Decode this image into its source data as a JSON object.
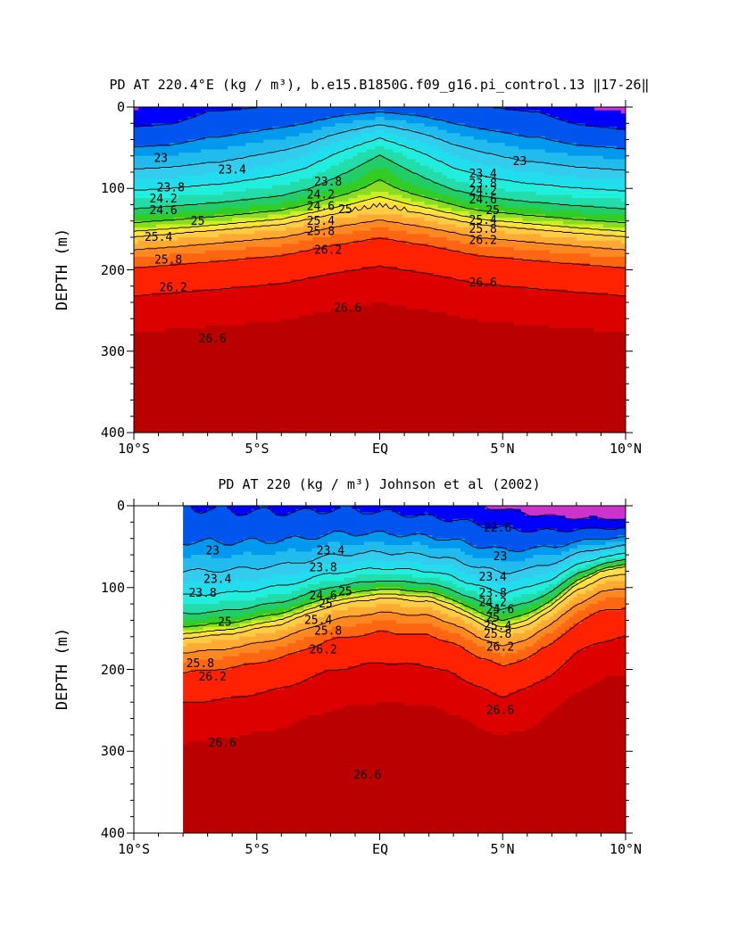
{
  "chart_data": [
    {
      "type": "heatmap",
      "title": "PD AT 220.4°E (kg / m³), b.e15.B1850G.f09_g16.pi_control.13 ‖17-26‖",
      "xlabel": "",
      "ylabel": "DEPTH (m)",
      "xlim": [
        -10,
        10
      ],
      "ylim": [
        400,
        0
      ],
      "x_ticks": [
        -10,
        -5,
        0,
        5,
        10
      ],
      "x_tick_labels": [
        "10°S",
        "5°S",
        "EQ",
        "5°N",
        "10°N"
      ],
      "y_ticks": [
        0,
        100,
        200,
        300,
        400
      ],
      "y_tick_labels": [
        "0",
        "100",
        "200",
        "300",
        "400"
      ],
      "data_start_x": -10,
      "contour_levels": [
        22.6,
        23.0,
        23.4,
        23.8,
        24.2,
        24.6,
        25.0,
        25.4,
        25.8,
        26.2,
        26.6
      ],
      "contour_labels": [
        {
          "text": "23",
          "x": -8.9,
          "y": 63
        },
        {
          "text": "23.4",
          "x": -6.0,
          "y": 77
        },
        {
          "text": "23.8",
          "x": -8.5,
          "y": 99
        },
        {
          "text": "24.2",
          "x": -8.8,
          "y": 113
        },
        {
          "text": "24.6",
          "x": -8.8,
          "y": 127
        },
        {
          "text": "25",
          "x": -7.4,
          "y": 140
        },
        {
          "text": "25.4",
          "x": -9.0,
          "y": 160
        },
        {
          "text": "25.8",
          "x": -8.6,
          "y": 188
        },
        {
          "text": "26.2",
          "x": -8.4,
          "y": 222
        },
        {
          "text": "26.6",
          "x": -6.8,
          "y": 285
        },
        {
          "text": "23.8",
          "x": -2.1,
          "y": 92
        },
        {
          "text": "24.2",
          "x": -2.4,
          "y": 108
        },
        {
          "text": "24.6",
          "x": -2.4,
          "y": 122
        },
        {
          "text": "25",
          "x": -1.4,
          "y": 126
        },
        {
          "text": "25.4",
          "x": -2.4,
          "y": 140
        },
        {
          "text": "25.8",
          "x": -2.4,
          "y": 153
        },
        {
          "text": "26.2",
          "x": -2.1,
          "y": 176
        },
        {
          "text": "26.6",
          "x": -1.3,
          "y": 247
        },
        {
          "text": "23",
          "x": 5.7,
          "y": 67
        },
        {
          "text": "23.4",
          "x": 4.2,
          "y": 82
        },
        {
          "text": "24.2",
          "x": 4.2,
          "y": 103
        },
        {
          "text": "23.8",
          "x": 4.2,
          "y": 94
        },
        {
          "text": "24.6",
          "x": 4.2,
          "y": 114
        },
        {
          "text": "25",
          "x": 4.6,
          "y": 127
        },
        {
          "text": "25.4",
          "x": 4.2,
          "y": 139
        },
        {
          "text": "25.8",
          "x": 4.2,
          "y": 150
        },
        {
          "text": "26.2",
          "x": 4.2,
          "y": 164
        },
        {
          "text": "26.6",
          "x": 4.2,
          "y": 216
        }
      ]
    },
    {
      "type": "heatmap",
      "title": "PD AT 220 (kg / m³) Johnson et al (2002)",
      "xlabel": "",
      "ylabel": "DEPTH (m)",
      "xlim": [
        -10,
        10
      ],
      "ylim": [
        400,
        0
      ],
      "x_ticks": [
        -10,
        -5,
        0,
        5,
        10
      ],
      "x_tick_labels": [
        "10°S",
        "5°S",
        "EQ",
        "5°N",
        "10°N"
      ],
      "y_ticks": [
        0,
        100,
        200,
        300,
        400
      ],
      "y_tick_labels": [
        "0",
        "100",
        "200",
        "300",
        "400"
      ],
      "data_start_x": -8,
      "contour_levels": [
        22.2,
        22.6,
        23.0,
        23.4,
        23.8,
        24.2,
        24.6,
        25.0,
        25.4,
        25.8,
        26.2,
        26.6
      ],
      "contour_labels": [
        {
          "text": "23",
          "x": -6.8,
          "y": 55
        },
        {
          "text": "23.4",
          "x": -6.6,
          "y": 90
        },
        {
          "text": "23.8",
          "x": -7.2,
          "y": 107
        },
        {
          "text": "25",
          "x": -6.3,
          "y": 142
        },
        {
          "text": "25.8",
          "x": -7.3,
          "y": 193
        },
        {
          "text": "26.2",
          "x": -6.8,
          "y": 209
        },
        {
          "text": "26.6",
          "x": -6.4,
          "y": 290
        },
        {
          "text": "23.4",
          "x": -2.0,
          "y": 55
        },
        {
          "text": "23.8",
          "x": -2.3,
          "y": 76
        },
        {
          "text": "24.6",
          "x": -2.3,
          "y": 110
        },
        {
          "text": "25",
          "x": -2.2,
          "y": 120
        },
        {
          "text": "25",
          "x": -1.4,
          "y": 105
        },
        {
          "text": "25.4",
          "x": -2.5,
          "y": 140
        },
        {
          "text": "25.8",
          "x": -2.1,
          "y": 153
        },
        {
          "text": "26.2",
          "x": -2.3,
          "y": 176
        },
        {
          "text": "26.6",
          "x": -0.5,
          "y": 329
        },
        {
          "text": "22.6",
          "x": 4.8,
          "y": 27
        },
        {
          "text": "23",
          "x": 4.9,
          "y": 62
        },
        {
          "text": "23.4",
          "x": 4.6,
          "y": 87
        },
        {
          "text": "23.8",
          "x": 4.6,
          "y": 107
        },
        {
          "text": "24.2",
          "x": 4.6,
          "y": 118
        },
        {
          "text": "24.6",
          "x": 4.9,
          "y": 127
        },
        {
          "text": "25",
          "x": 4.6,
          "y": 137
        },
        {
          "text": "25.4",
          "x": 4.8,
          "y": 147
        },
        {
          "text": "25.8",
          "x": 4.8,
          "y": 157
        },
        {
          "text": "26.2",
          "x": 4.9,
          "y": 173
        },
        {
          "text": "26.6",
          "x": 4.9,
          "y": 250
        }
      ]
    }
  ]
}
